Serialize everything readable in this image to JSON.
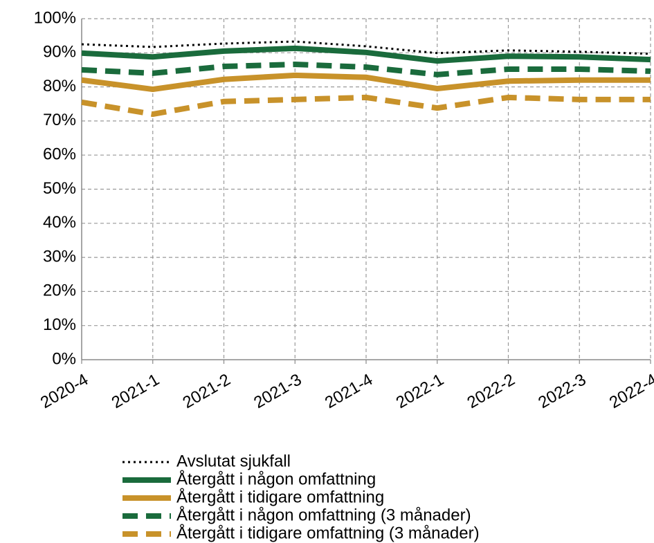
{
  "chart_data": {
    "type": "line",
    "categories": [
      "2020-4",
      "2021-1",
      "2021-2",
      "2021-3",
      "2021-4",
      "2022-1",
      "2022-2",
      "2022-3",
      "2022-4"
    ],
    "series": [
      {
        "name": "Avslutat sjukfall",
        "color": "#000000",
        "style": "dotted",
        "values": [
          92.5,
          91.7,
          92.7,
          93.3,
          91.9,
          89.9,
          90.7,
          90.3,
          89.7
        ]
      },
      {
        "name": "Återgått i någon omfattning",
        "color": "#1a6b3c",
        "style": "solid",
        "values": [
          89.9,
          88.8,
          90.5,
          91.3,
          90.1,
          87.6,
          89.0,
          88.8,
          88.0
        ]
      },
      {
        "name": "Återgått i tidigare omfattning",
        "color": "#c8922a",
        "style": "solid",
        "values": [
          82.0,
          79.3,
          82.2,
          83.4,
          82.8,
          79.5,
          81.7,
          82.0,
          82.0
        ]
      },
      {
        "name": "Återgått i någon omfattning (3 månader)",
        "color": "#1a6b3c",
        "style": "dashed",
        "values": [
          85.0,
          84.0,
          86.0,
          86.6,
          85.8,
          83.6,
          85.2,
          85.2,
          84.6
        ]
      },
      {
        "name": "Återgått i tidigare omfattning (3 månader)",
        "color": "#c8922a",
        "style": "dashed",
        "values": [
          75.5,
          72.0,
          75.7,
          76.3,
          76.9,
          73.8,
          76.9,
          76.3,
          76.3
        ]
      }
    ],
    "ylim": [
      0,
      100
    ],
    "yticks": [
      {
        "value": 0,
        "label": "0%"
      },
      {
        "value": 10,
        "label": "10%"
      },
      {
        "value": 20,
        "label": "20%"
      },
      {
        "value": 30,
        "label": "30%"
      },
      {
        "value": 40,
        "label": "40%"
      },
      {
        "value": 50,
        "label": "50%"
      },
      {
        "value": 60,
        "label": "60%"
      },
      {
        "value": 70,
        "label": "70%"
      },
      {
        "value": 80,
        "label": "80%"
      },
      {
        "value": 90,
        "label": "90%"
      },
      {
        "value": 100,
        "label": "100%"
      }
    ],
    "grid": true,
    "legend": "bottom"
  }
}
